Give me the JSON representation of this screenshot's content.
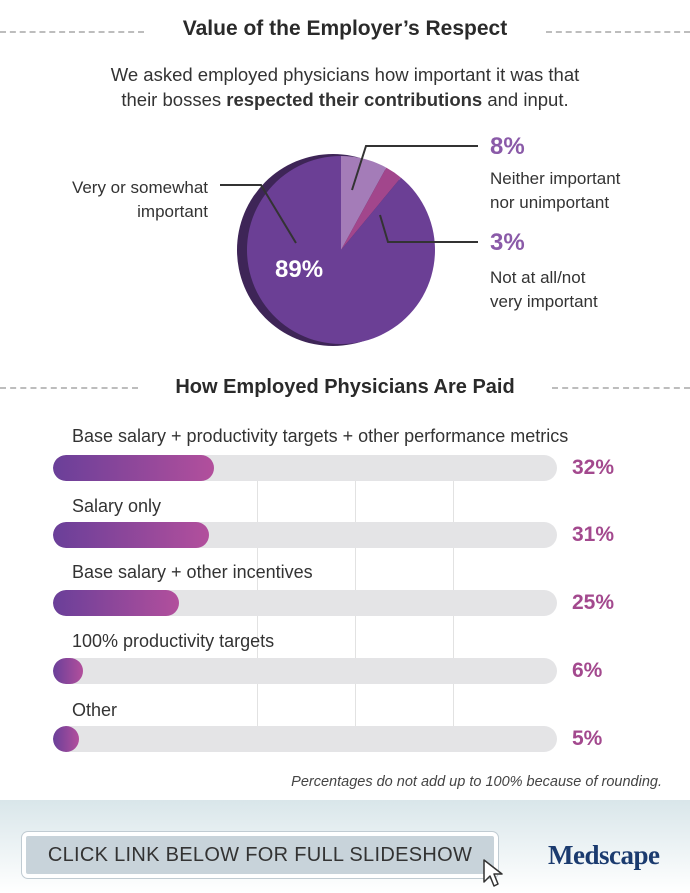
{
  "section1": {
    "title": "Value of the Employer’s Respect",
    "intro_line1": "We asked employed physicians how important it was that",
    "intro_line2_pre": "their bosses ",
    "intro_line2_bold": "respected their contributions",
    "intro_line2_post": " and input."
  },
  "section2": {
    "title": "How Employed Physicians Are Paid",
    "footnote": "Percentages do not add up to 100% because of rounding."
  },
  "cta": {
    "label": "CLICK LINK BELOW FOR FULL SLIDESHOW"
  },
  "logo": {
    "text": "Medscape"
  },
  "colors": {
    "pie_main": "#6b3f95",
    "pie_side": "#3e2557",
    "pie_light": "#a47cb8",
    "pie_small": "#a2468c",
    "bar_start": "#6a3f99",
    "bar_end": "#b24f9c",
    "value_text": "#a3498e",
    "track": "#e4e4e6"
  },
  "chart_data": [
    {
      "type": "pie",
      "title": "Value of the Employer’s Respect",
      "slices": [
        {
          "label": "Very or somewhat important",
          "label_line1": "Very or somewhat",
          "label_line2": "important",
          "value": 89,
          "display": "89%"
        },
        {
          "label": "Neither important nor unimportant",
          "label_line1": "Neither important",
          "label_line2": "nor unimportant",
          "value": 8,
          "display": "8%"
        },
        {
          "label": "Not at all/not very important",
          "label_line1": "Not at all/not",
          "label_line2": "very important",
          "value": 3,
          "display": "3%"
        }
      ]
    },
    {
      "type": "bar",
      "orientation": "horizontal",
      "title": "How Employed Physicians Are Paid",
      "xlim": [
        0,
        100
      ],
      "categories": [
        "Base salary + productivity targets + other performance metrics",
        "Salary only",
        "Base salary + other incentives",
        "100% productivity targets",
        "Other"
      ],
      "values": [
        32,
        31,
        25,
        6,
        5
      ],
      "display": [
        "32%",
        "31%",
        "25%",
        "6%",
        "5%"
      ]
    }
  ]
}
